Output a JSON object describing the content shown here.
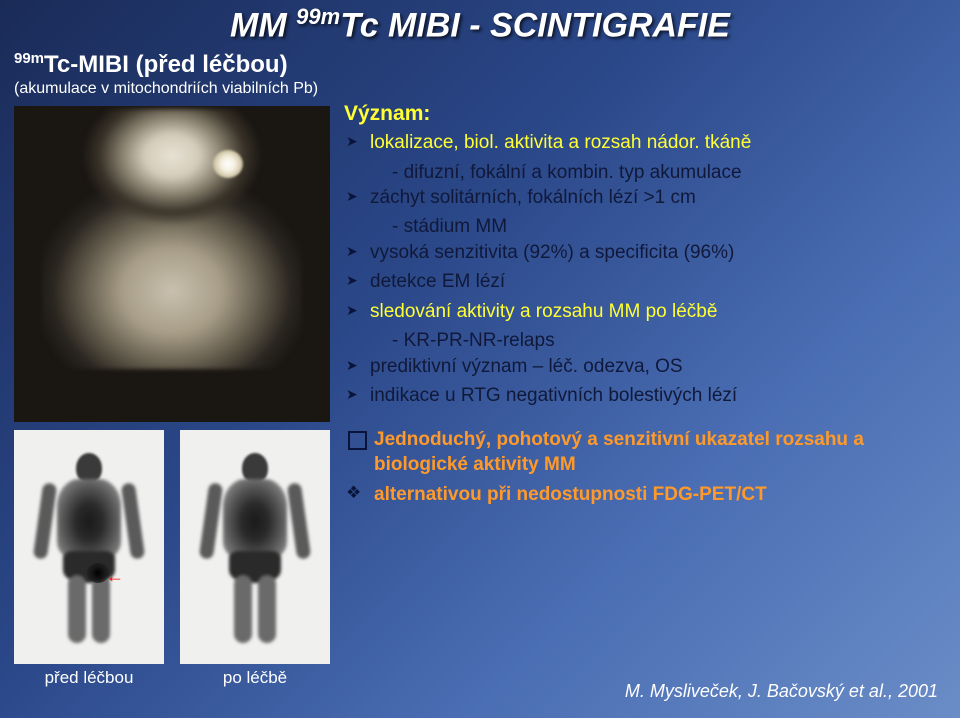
{
  "title": {
    "text_html": "MM <span class='sup'>99m</span>Tc MIBI - SCINTIGRAFIE",
    "color": "#ffffff"
  },
  "subtitle": {
    "text_html": "<span class='sup'>99m</span>Tc-MIBI (před léčbou)",
    "note": "(akumulace v mitochondriích viabilních Pb)"
  },
  "captions": {
    "before": "před léčbou",
    "after": "po léčbě"
  },
  "content": {
    "heading": "Význam:",
    "bullets": [
      {
        "html": "<span class='highlight-yellow'>lokalizace, biol. aktivita a rozsah nádor. tkáně</span>",
        "sub": "- difuzní, fokální a kombin. typ akumulace"
      },
      {
        "html": "záchyt solitárních, fokálních lézí >1 cm",
        "sub": "- stádium MM"
      },
      {
        "html": "vysoká senzitivita (92%) a specificita (96%)"
      },
      {
        "html": "detekce EM lézí"
      },
      {
        "html": "<span class='highlight-yellow'>sledování aktivity a rozsahu MM po léčbě</span>",
        "sub": "- KR-PR-NR-relaps"
      },
      {
        "html": "prediktivní význam – léč. odezva, OS"
      },
      {
        "html": "indikace u RTG negativních bolestivých lézí"
      }
    ],
    "box": {
      "main_html": "<span class='highlight-orange'>Jednoduchý, pohotový a senzitivní ukazatel rozsahu a biologické aktivity MM</span>",
      "alt_html": "<span class='highlight-orange'>alternativou při nedostupnosti FDG-PET/CT</span>"
    }
  },
  "reference": "M. Mysliveček, J. Bačovský et al., 2001",
  "styling": {
    "bg_gradient": [
      "#1a2b58",
      "#2a4788",
      "#4a6db3",
      "#6a8dc7"
    ],
    "title_fontsize": 34,
    "body_fontsize": 19,
    "highlight_yellow": "#ffff33",
    "highlight_orange": "#ff9a2a",
    "text_color": "#10193a",
    "white": "#ffffff",
    "scan_main_bg": "#1a1612",
    "scan_small_bg": "#f0f0ee",
    "arrow_color": "#ff0000"
  }
}
